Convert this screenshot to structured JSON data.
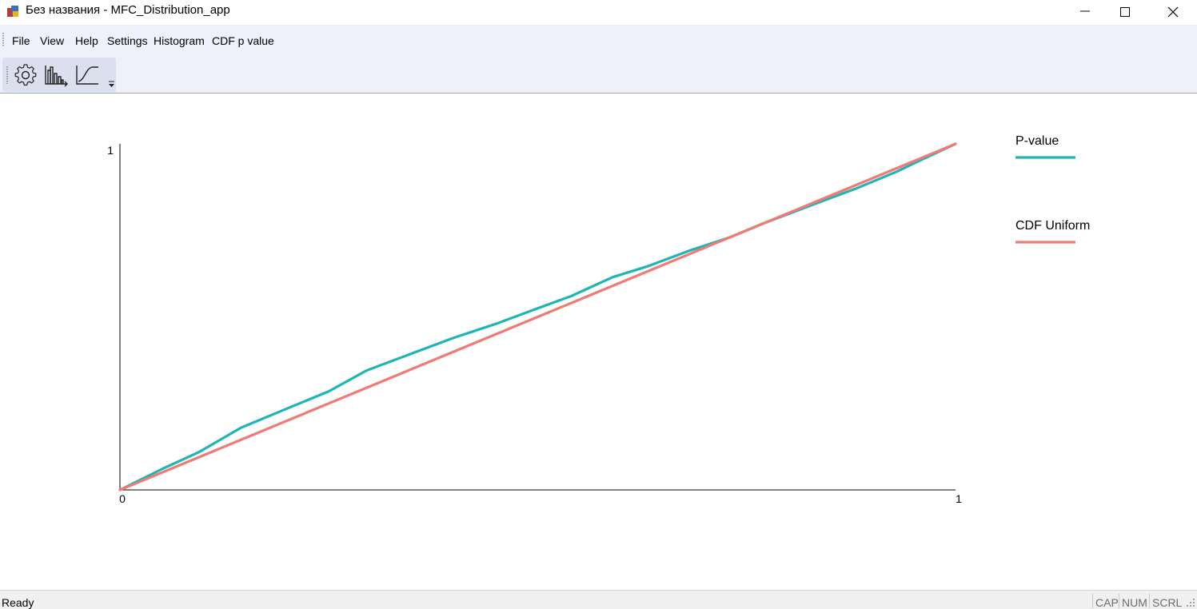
{
  "window": {
    "title": "Без названия - MFC_Distribution_app",
    "app_icon": "app-icon",
    "controls": [
      "minimize-icon",
      "maximize-icon",
      "close-icon"
    ]
  },
  "menu": {
    "items": [
      "File",
      "View",
      "Help",
      "Settings",
      "Histogram",
      "CDF p value"
    ]
  },
  "toolbar": {
    "buttons": [
      "gear-icon",
      "histogram-icon",
      "cdf-curve-icon"
    ],
    "overflow_icon": "chevron-down-icon"
  },
  "chart_data": {
    "type": "line",
    "title": "",
    "xlabel": "",
    "ylabel": "",
    "xlim": [
      0,
      1
    ],
    "ylim": [
      0,
      1
    ],
    "x_tick_labels": [
      "0",
      "1"
    ],
    "y_tick_labels": [
      "1"
    ],
    "grid": false,
    "legend_position": "right",
    "series": [
      {
        "name": "P-value",
        "color": "#1fb5b5",
        "points": [
          [
            0,
            0
          ],
          [
            0.05,
            0.06
          ],
          [
            0.095,
            0.11
          ],
          [
            0.145,
            0.18
          ],
          [
            0.2,
            0.235
          ],
          [
            0.25,
            0.285
          ],
          [
            0.295,
            0.345
          ],
          [
            0.35,
            0.395
          ],
          [
            0.4,
            0.44
          ],
          [
            0.45,
            0.48
          ],
          [
            0.5,
            0.525
          ],
          [
            0.54,
            0.56
          ],
          [
            0.59,
            0.615
          ],
          [
            0.63,
            0.645
          ],
          [
            0.68,
            0.69
          ],
          [
            0.73,
            0.73
          ],
          [
            0.77,
            0.77
          ],
          [
            0.83,
            0.825
          ],
          [
            0.88,
            0.87
          ],
          [
            0.93,
            0.92
          ],
          [
            0.96,
            0.955
          ],
          [
            1,
            1
          ]
        ]
      },
      {
        "name": "CDF Uniform",
        "color": "#f07a74",
        "points": [
          [
            0,
            0
          ],
          [
            1,
            1
          ]
        ]
      }
    ]
  },
  "status": {
    "text": "Ready",
    "indicators": [
      "CAP",
      "NUM",
      "SCRL"
    ]
  }
}
